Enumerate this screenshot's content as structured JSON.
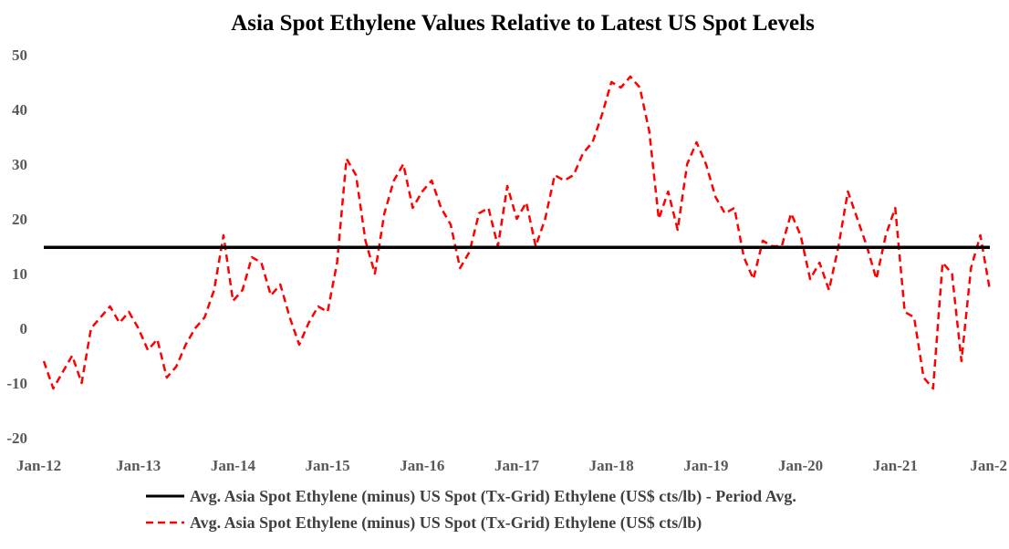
{
  "chart_data": {
    "type": "line",
    "title": "Asia Spot Ethylene Values Relative to Latest US Spot Levels",
    "xlabel": "",
    "ylabel": "",
    "ylim": [
      -20,
      50
    ],
    "yticks": [
      -20,
      -10,
      0,
      10,
      20,
      30,
      40,
      50
    ],
    "xlim": [
      2012.0,
      2022.0
    ],
    "xticks": [
      {
        "label": "Jan-12",
        "x": 2012.0
      },
      {
        "label": "Jan-13",
        "x": 2013.0
      },
      {
        "label": "Jan-14",
        "x": 2014.0
      },
      {
        "label": "Jan-15",
        "x": 2015.0
      },
      {
        "label": "Jan-16",
        "x": 2016.0
      },
      {
        "label": "Jan-17",
        "x": 2017.0
      },
      {
        "label": "Jan-18",
        "x": 2018.0
      },
      {
        "label": "Jan-19",
        "x": 2019.0
      },
      {
        "label": "Jan-20",
        "x": 2020.0
      },
      {
        "label": "Jan-21",
        "x": 2021.0
      },
      {
        "label": "Jan-2",
        "x": 2022.0
      }
    ],
    "grid": false,
    "legend_position": "bottom",
    "series": [
      {
        "name": "Avg. Asia Spot Ethylene (minus) US Spot (Tx-Grid) Ethylene (US$ cts/lb) - Period Avg.",
        "style": "solid",
        "color": "#000000",
        "x": [
          2012.0,
          2022.0
        ],
        "y": [
          14.8,
          14.8
        ]
      },
      {
        "name": "Avg. Asia Spot Ethylene (minus) US Spot (Tx-Grid) Ethylene (US$ cts/lb)",
        "style": "dashed",
        "color": "#ff0000",
        "x": [
          2012.0,
          2012.1,
          2012.2,
          2012.3,
          2012.4,
          2012.5,
          2012.6,
          2012.7,
          2012.8,
          2012.9,
          2013.0,
          2013.1,
          2013.2,
          2013.3,
          2013.4,
          2013.5,
          2013.6,
          2013.7,
          2013.8,
          2013.9,
          2014.0,
          2014.1,
          2014.2,
          2014.3,
          2014.4,
          2014.5,
          2014.6,
          2014.7,
          2014.8,
          2014.9,
          2015.0,
          2015.1,
          2015.2,
          2015.3,
          2015.4,
          2015.5,
          2015.6,
          2015.7,
          2015.8,
          2015.9,
          2016.0,
          2016.1,
          2016.2,
          2016.3,
          2016.4,
          2016.5,
          2016.6,
          2016.7,
          2016.8,
          2016.9,
          2017.0,
          2017.1,
          2017.2,
          2017.3,
          2017.4,
          2017.5,
          2017.6,
          2017.7,
          2017.8,
          2017.9,
          2018.0,
          2018.1,
          2018.2,
          2018.3,
          2018.4,
          2018.5,
          2018.6,
          2018.7,
          2018.8,
          2018.9,
          2019.0,
          2019.1,
          2019.2,
          2019.3,
          2019.4,
          2019.5,
          2019.6,
          2019.7,
          2019.8,
          2019.9,
          2020.0,
          2020.1,
          2020.2,
          2020.3,
          2020.4,
          2020.5,
          2020.6,
          2020.7,
          2020.8,
          2020.9,
          2021.0,
          2021.1,
          2021.2,
          2021.3,
          2021.4,
          2021.5,
          2021.6,
          2021.7,
          2021.8,
          2021.9,
          2022.0
        ],
        "y": [
          -6,
          -11,
          -8,
          -5,
          -10,
          0,
          2,
          4,
          1,
          3,
          0,
          -4,
          -2,
          -9,
          -7,
          -3,
          0,
          2,
          7,
          17,
          5,
          7,
          13,
          12,
          6,
          8,
          2,
          -3,
          1,
          4,
          3,
          12,
          31,
          28,
          16,
          10,
          21,
          27,
          30,
          22,
          25,
          27,
          22,
          19,
          11,
          14,
          21,
          22,
          15,
          26,
          20,
          23,
          15,
          20,
          28,
          27,
          28,
          32,
          34,
          39,
          45,
          44,
          46,
          44,
          36,
          20,
          25,
          18,
          30,
          34,
          30,
          24,
          21,
          22,
          13,
          9,
          16,
          15,
          15,
          21,
          17,
          9,
          12,
          7,
          15,
          25,
          20,
          15,
          9,
          17,
          22,
          3,
          2,
          -9,
          -11,
          12,
          10,
          -6,
          11,
          17,
          7
        ]
      }
    ]
  }
}
